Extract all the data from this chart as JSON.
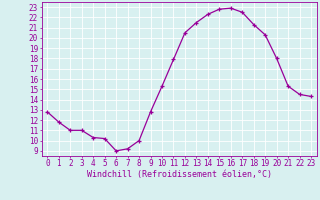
{
  "x": [
    0,
    1,
    2,
    3,
    4,
    5,
    6,
    7,
    8,
    9,
    10,
    11,
    12,
    13,
    14,
    15,
    16,
    17,
    18,
    19,
    20,
    21,
    22,
    23
  ],
  "y": [
    12.8,
    11.8,
    11.0,
    11.0,
    10.3,
    10.2,
    9.0,
    9.2,
    10.0,
    12.8,
    15.3,
    17.9,
    20.5,
    21.5,
    22.3,
    22.8,
    22.9,
    22.5,
    21.3,
    20.3,
    18.0,
    15.3,
    14.5,
    14.3
  ],
  "line_color": "#990099",
  "marker": "+",
  "marker_size": 3,
  "linewidth": 0.9,
  "xlabel": "Windchill (Refroidissement éolien,°C)",
  "ylabel_ticks": [
    9,
    10,
    11,
    12,
    13,
    14,
    15,
    16,
    17,
    18,
    19,
    20,
    21,
    22,
    23
  ],
  "xlim": [
    -0.5,
    23.5
  ],
  "ylim": [
    8.5,
    23.5
  ],
  "bg_color": "#d8f0f0",
  "grid_color": "#ffffff",
  "tick_label_color": "#990099",
  "axis_label_color": "#990099",
  "xlabel_fontsize": 6,
  "ytick_fontsize": 5.5,
  "xtick_fontsize": 5.5
}
